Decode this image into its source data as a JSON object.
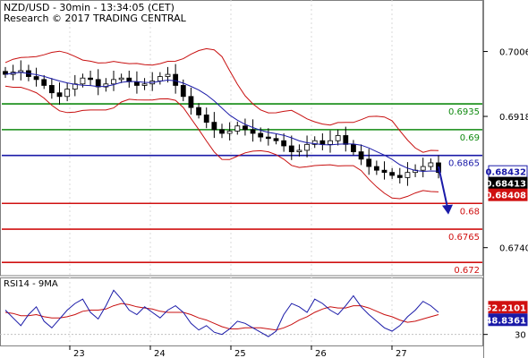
{
  "header": {
    "line1": "NZD/USD - 30min - 13:34:05 (CET)",
    "line2": "Research © 2017 TRADING CENTRAL"
  },
  "rsi_panel": {
    "title": "RSI14 - 9MA"
  },
  "colors": {
    "resistance": "#108a10",
    "pivot": "#1a1aa8",
    "support": "#d01010",
    "candle": "#000000",
    "ma": "#1a1aa8",
    "bollinger": "#c81010",
    "rsi_line": "#1a1aa8",
    "rsi_ma": "#c81010",
    "arrow": "#1a1aa8"
  },
  "chart_data": [
    {
      "type": "candlestick",
      "title": "NZD/USD - 30min - 13:34:05 (CET)",
      "x_labels": [
        "23",
        "24",
        "25",
        "26",
        "27"
      ],
      "y_ticks": [
        0.7006,
        0.6918,
        0.674
      ],
      "ylim": [
        0.6702,
        0.7054
      ],
      "levels": [
        {
          "label": "0.6935",
          "value": 0.6935,
          "kind": "resistance"
        },
        {
          "label": "0.69",
          "value": 0.69,
          "kind": "resistance"
        },
        {
          "label": "0.6865",
          "value": 0.6865,
          "kind": "pivot"
        },
        {
          "label": "0.68",
          "value": 0.68,
          "kind": "support"
        },
        {
          "label": "0.6765",
          "value": 0.6765,
          "kind": "support"
        },
        {
          "label": "0.672",
          "value": 0.672,
          "kind": "support"
        }
      ],
      "price_badges": [
        {
          "label": "0.68432",
          "value": 0.68432,
          "style": "blue-outline"
        },
        {
          "label": "0.68413",
          "value": 0.68413,
          "style": "black"
        },
        {
          "label": "0.68408",
          "value": 0.68408,
          "style": "red"
        }
      ],
      "close_path": [
        0.6975,
        0.6978,
        0.698,
        0.6972,
        0.6968,
        0.696,
        0.695,
        0.6945,
        0.6955,
        0.6962,
        0.697,
        0.6968,
        0.6958,
        0.6962,
        0.6968,
        0.697,
        0.6965,
        0.696,
        0.6962,
        0.6966,
        0.6972,
        0.6975,
        0.696,
        0.6945,
        0.693,
        0.692,
        0.691,
        0.69,
        0.6895,
        0.6898,
        0.6905,
        0.69,
        0.6895,
        0.689,
        0.6888,
        0.6885,
        0.6878,
        0.687,
        0.6872,
        0.688,
        0.6885,
        0.688,
        0.6885,
        0.6892,
        0.688,
        0.687,
        0.686,
        0.685,
        0.6845,
        0.6842,
        0.6838,
        0.6835,
        0.6842,
        0.6845,
        0.685,
        0.6855,
        0.6842
      ],
      "forecast_arrow": {
        "from": 0.685,
        "to": 0.6785
      },
      "rsi": {
        "name": "RSI14 - 9MA",
        "y_ticks": [
          30
        ],
        "ylim": [
          20,
          80
        ],
        "badges": [
          {
            "label": "52.2101",
            "value": 52.21,
            "style": "red"
          },
          {
            "label": "48.8361",
            "value": 48.84,
            "style": "blue"
          }
        ],
        "values": [
          52,
          45,
          38,
          48,
          55,
          42,
          36,
          44,
          52,
          58,
          62,
          50,
          44,
          56,
          70,
          62,
          52,
          48,
          55,
          50,
          45,
          52,
          56,
          50,
          40,
          34,
          38,
          32,
          30,
          35,
          42,
          40,
          36,
          32,
          28,
          33,
          48,
          58,
          55,
          50,
          62,
          58,
          52,
          48,
          56,
          65,
          55,
          48,
          42,
          36,
          33,
          38,
          46,
          52,
          60,
          56,
          50
        ],
        "ma": [
          50,
          49,
          47,
          47,
          48,
          46,
          45,
          45,
          46,
          48,
          51,
          52,
          52,
          53,
          56,
          58,
          57,
          55,
          54,
          53,
          51,
          50,
          50,
          50,
          48,
          45,
          43,
          40,
          37,
          35,
          35,
          36,
          36,
          36,
          35,
          34,
          36,
          39,
          43,
          46,
          50,
          53,
          55,
          54,
          54,
          56,
          56,
          54,
          51,
          48,
          46,
          43,
          41,
          42,
          44,
          46,
          48
        ]
      }
    }
  ]
}
